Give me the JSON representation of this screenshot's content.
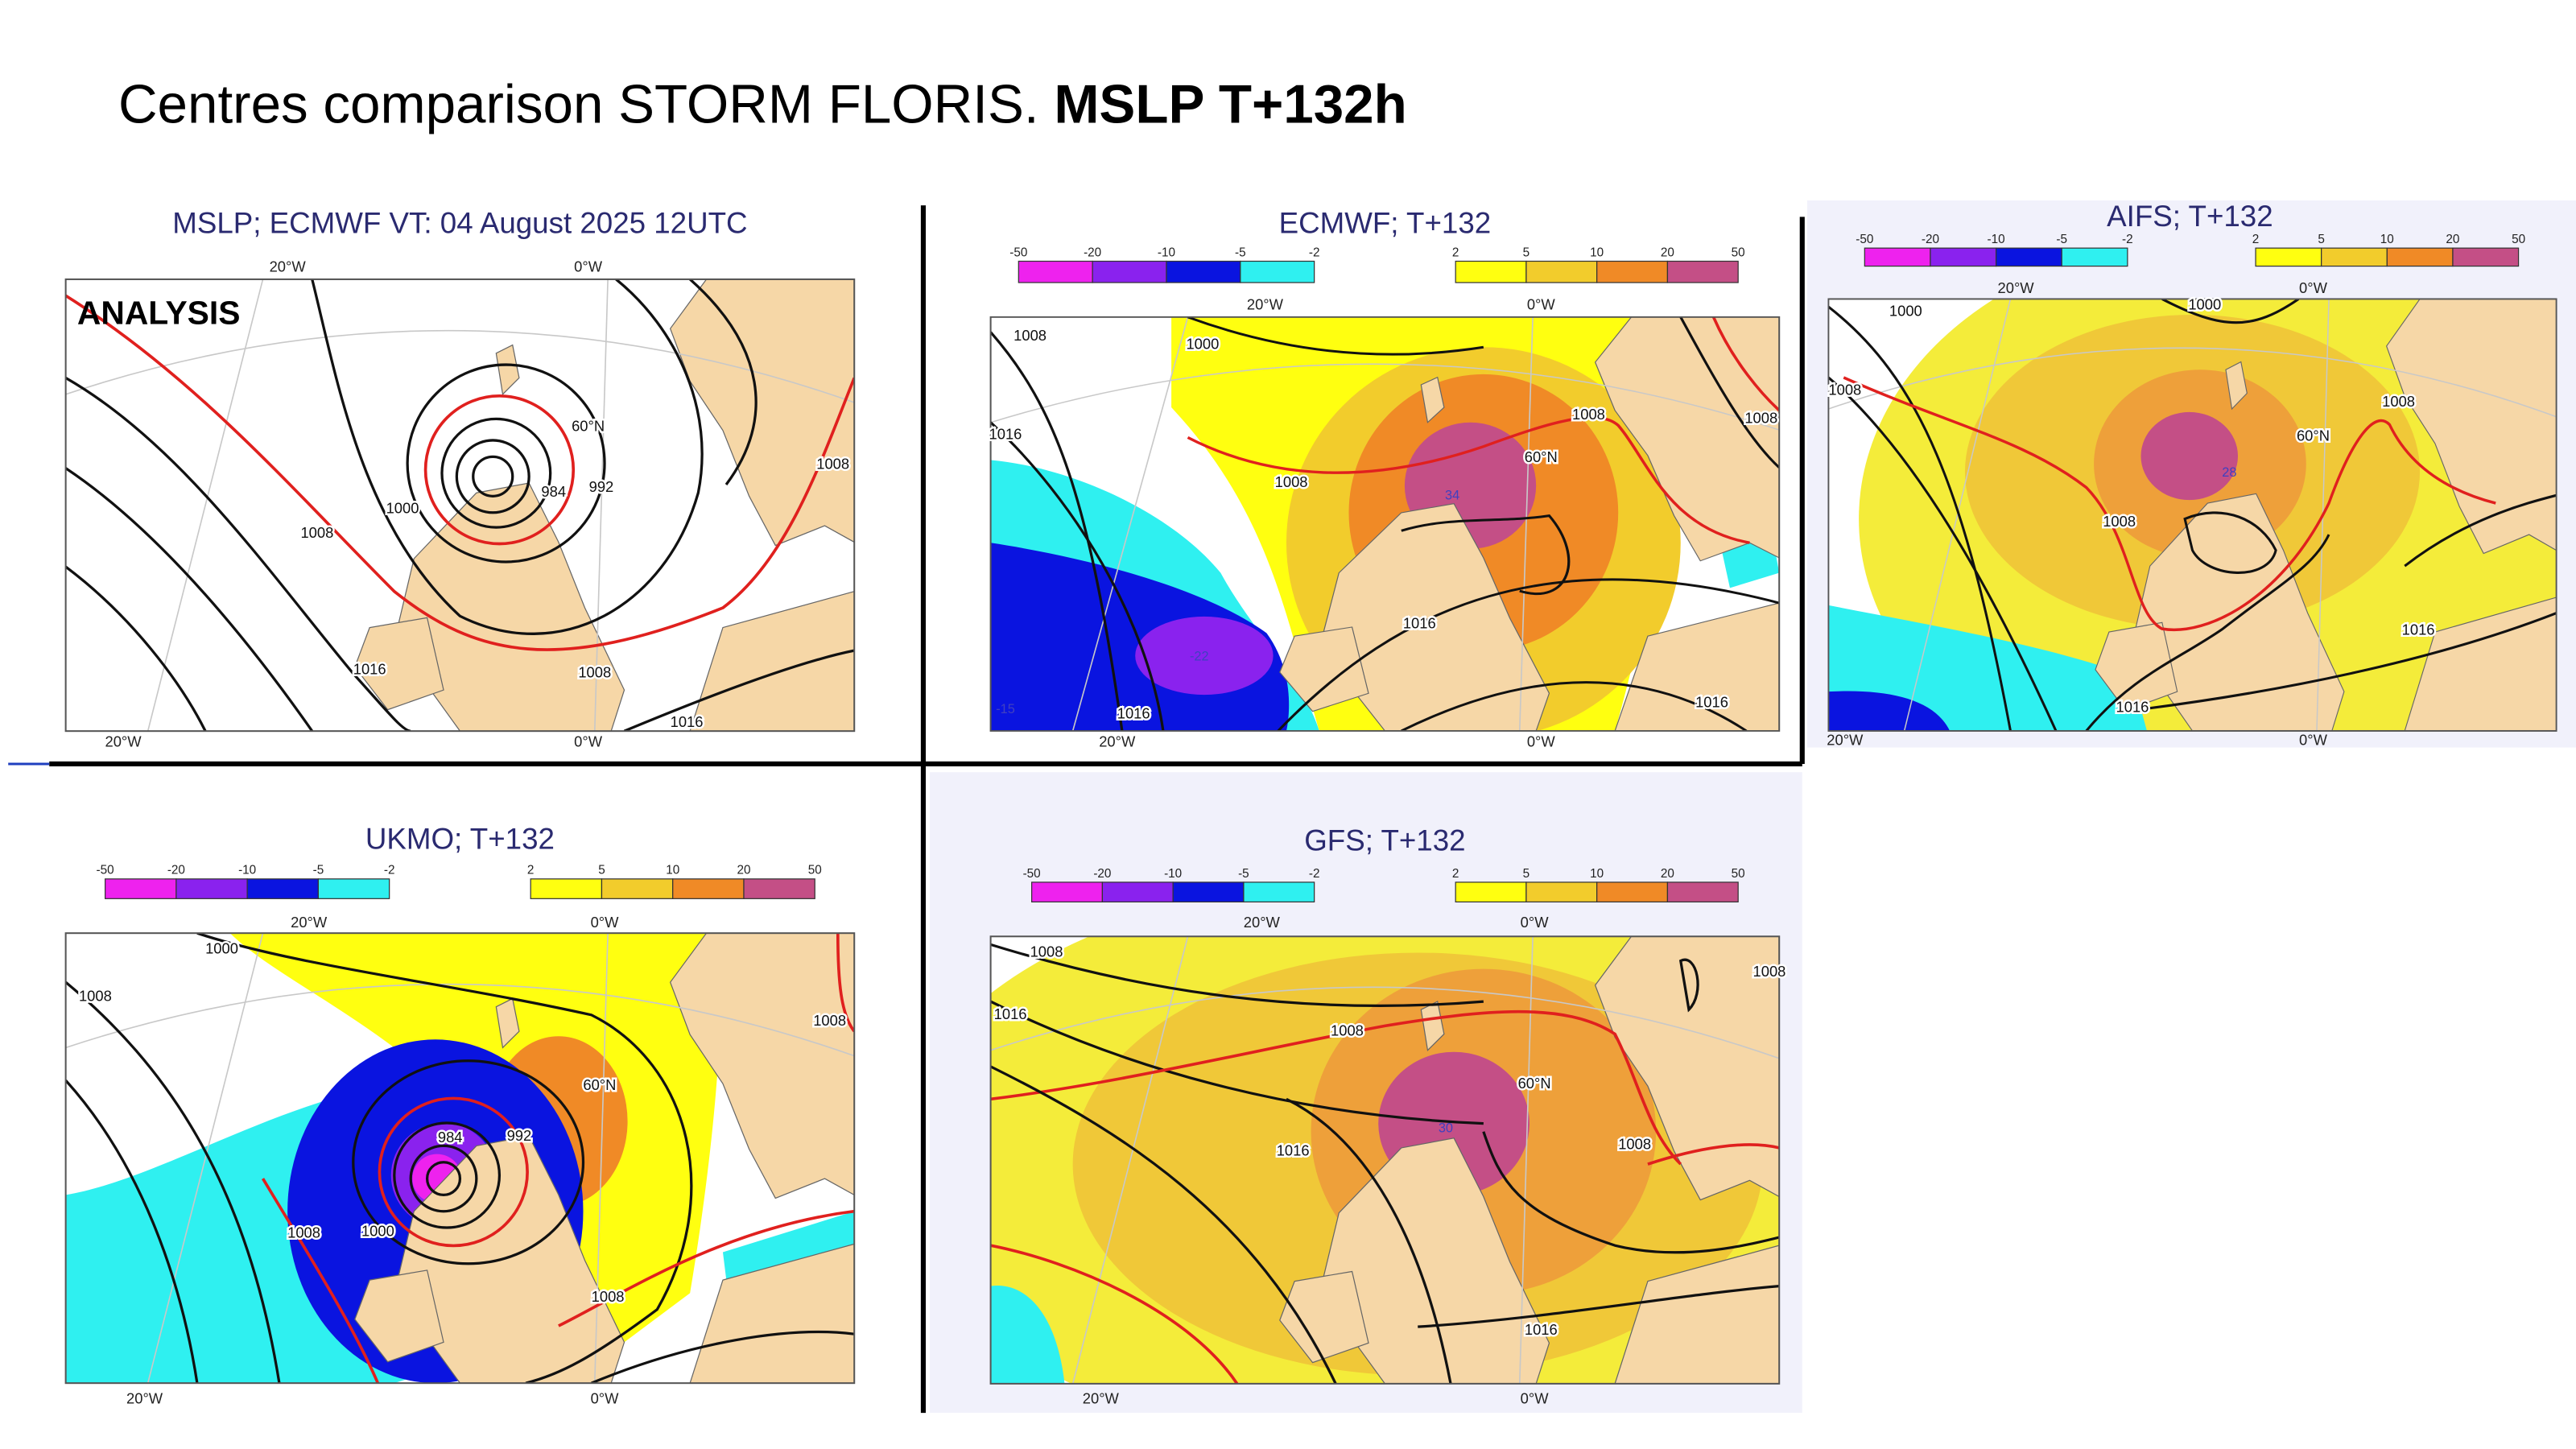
{
  "title": {
    "text": "Centres comparison STORM FLORIS.",
    "bold": "MSLP T+132h"
  },
  "colorbar": {
    "negative": [
      -50,
      -20,
      -10,
      -5,
      -2
    ],
    "positive": [
      2,
      5,
      10,
      20,
      50
    ],
    "colors_negative": [
      "#ee22ee",
      "#8a22ee",
      "#0a14e0",
      "#2ff0f0"
    ],
    "colors_positive": [
      "#ffff10",
      "#f2cc2c",
      "#f08a26",
      "#c44f86"
    ]
  },
  "panels": [
    {
      "title": "MSLP; ECMWF VT: 04 August 2025 12UTC",
      "label": "ANALYSIS",
      "lon_labels": [
        "20°W",
        "0°W"
      ],
      "lat_label": "60°N",
      "isobars": [
        1000,
        1008,
        1016,
        984,
        992,
        1008,
        1008,
        1016
      ],
      "anomalies": []
    },
    {
      "title": "ECMWF; T+132",
      "lon_labels": [
        "20°W",
        "0°W"
      ],
      "lat_label": "60°N",
      "isobars": [
        1008,
        1000,
        1016,
        1008,
        1008,
        1008,
        1016,
        1016,
        1016
      ],
      "anomalies": [
        34,
        -22,
        -15
      ]
    },
    {
      "title": "AIFS; T+132",
      "lon_labels": [
        "20°W",
        "0°W"
      ],
      "lat_label": "60°N",
      "isobars": [
        1000,
        1008,
        1000,
        1008,
        1008,
        1016,
        1016
      ],
      "anomalies": [
        28
      ]
    },
    {
      "title": "UKMO; T+132",
      "lon_labels": [
        "20°W",
        "0°W"
      ],
      "lat_label": "60°N",
      "isobars": [
        1000,
        1008,
        1008,
        984,
        992,
        1008,
        1000,
        1008
      ],
      "anomalies": []
    },
    {
      "title": "GFS; T+132",
      "lon_labels": [
        "20°W",
        "0°W"
      ],
      "lat_label": "60°N",
      "isobars": [
        1008,
        1016,
        1008,
        1016,
        1008,
        1016,
        1008
      ],
      "anomalies": [
        30
      ]
    }
  ]
}
